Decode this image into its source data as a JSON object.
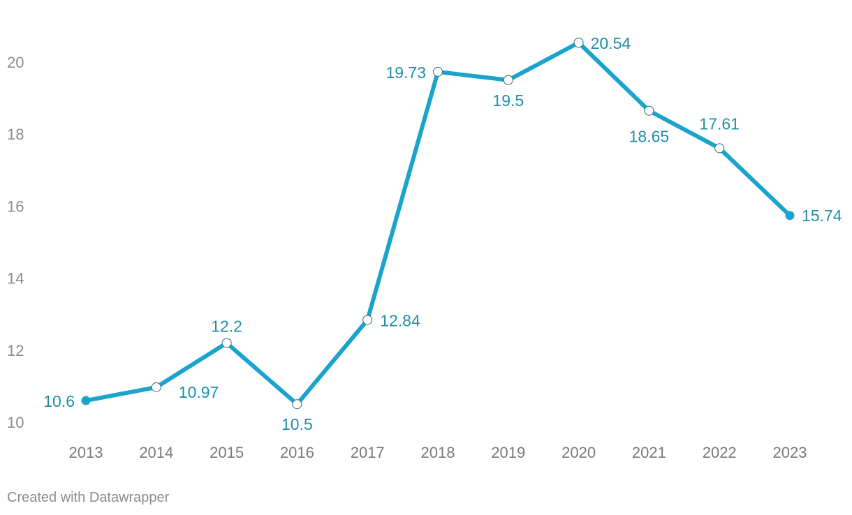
{
  "chart_data": {
    "type": "line",
    "x": [
      "2013",
      "2014",
      "2015",
      "2016",
      "2017",
      "2018",
      "2019",
      "2020",
      "2021",
      "2022",
      "2023"
    ],
    "values": [
      10.6,
      10.97,
      12.2,
      10.5,
      12.84,
      19.73,
      19.5,
      20.54,
      18.65,
      17.61,
      15.74
    ],
    "labels": [
      "10.6",
      "10.97",
      "12.2",
      "10.5",
      "12.84",
      "19.73",
      "19.5",
      "20.54",
      "18.65",
      "17.61",
      "15.74"
    ],
    "yticks": [
      10,
      12,
      14,
      16,
      18,
      20
    ],
    "ylim": [
      10,
      21
    ],
    "grid": false,
    "line_color": "#1aa3cc",
    "label_color": "#1f8ea8"
  },
  "footer": "Created with Datawrapper"
}
